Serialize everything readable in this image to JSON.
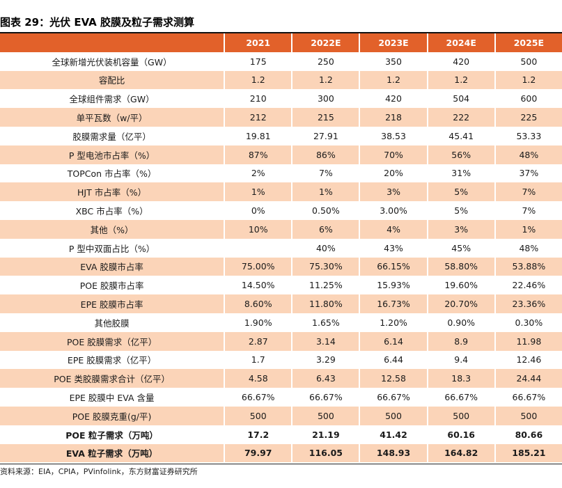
{
  "title": "图表 29：光伏 EVA 胶膜及粒子需求测算",
  "columns": [
    "2021",
    "2022E",
    "2023E",
    "2024E",
    "2025E"
  ],
  "rows": [
    {
      "label": "全球新增光伏装机容量（GW）",
      "values": [
        "175",
        "250",
        "350",
        "420",
        "500"
      ],
      "bold": false
    },
    {
      "label": "容配比",
      "values": [
        "1.2",
        "1.2",
        "1.2",
        "1.2",
        "1.2"
      ],
      "bold": false
    },
    {
      "label": "全球组件需求（GW）",
      "values": [
        "210",
        "300",
        "420",
        "504",
        "600"
      ],
      "bold": false
    },
    {
      "label": "单平瓦数（w/平）",
      "values": [
        "212",
        "215",
        "218",
        "222",
        "225"
      ],
      "bold": false
    },
    {
      "label": "胶膜需求量（亿平）",
      "values": [
        "19.81",
        "27.91",
        "38.53",
        "45.41",
        "53.33"
      ],
      "bold": false
    },
    {
      "label": "P 型电池市占率（%）",
      "values": [
        "87%",
        "86%",
        "70%",
        "56%",
        "48%"
      ],
      "bold": false
    },
    {
      "label": "TOPCon 市占率（%）",
      "values": [
        "2%",
        "7%",
        "20%",
        "31%",
        "37%"
      ],
      "bold": false
    },
    {
      "label": "HJT 市占率（%）",
      "values": [
        "1%",
        "1%",
        "3%",
        "5%",
        "7%"
      ],
      "bold": false
    },
    {
      "label": "XBC 市占率（%）",
      "values": [
        "0%",
        "0.50%",
        "3.00%",
        "5%",
        "7%"
      ],
      "bold": false
    },
    {
      "label": "其他（%）",
      "values": [
        "10%",
        "6%",
        "4%",
        "3%",
        "1%"
      ],
      "bold": false
    },
    {
      "label": "P 型中双面占比（%）",
      "values": [
        "",
        "40%",
        "43%",
        "45%",
        "48%"
      ],
      "bold": false
    },
    {
      "label": "EVA 胶膜市占率",
      "values": [
        "75.00%",
        "75.30%",
        "66.15%",
        "58.80%",
        "53.88%"
      ],
      "bold": false
    },
    {
      "label": "POE 胶膜市占率",
      "values": [
        "14.50%",
        "11.25%",
        "15.93%",
        "19.60%",
        "22.46%"
      ],
      "bold": false
    },
    {
      "label": "EPE 胶膜市占率",
      "values": [
        "8.60%",
        "11.80%",
        "16.73%",
        "20.70%",
        "23.36%"
      ],
      "bold": false
    },
    {
      "label": "其他胶膜",
      "values": [
        "1.90%",
        "1.65%",
        "1.20%",
        "0.90%",
        "0.30%"
      ],
      "bold": false
    },
    {
      "label": "POE 胶膜需求（亿平）",
      "values": [
        "2.87",
        "3.14",
        "6.14",
        "8.9",
        "11.98"
      ],
      "bold": false
    },
    {
      "label": "EPE 胶膜需求（亿平）",
      "values": [
        "1.7",
        "3.29",
        "6.44",
        "9.4",
        "12.46"
      ],
      "bold": false
    },
    {
      "label": "POE 类胶膜需求合计（亿平）",
      "values": [
        "4.58",
        "6.43",
        "12.58",
        "18.3",
        "24.44"
      ],
      "bold": false
    },
    {
      "label": "EPE 胶膜中 EVA 含量",
      "values": [
        "66.67%",
        "66.67%",
        "66.67%",
        "66.67%",
        "66.67%"
      ],
      "bold": false
    },
    {
      "label": "POE 胶膜克重(g/平)",
      "values": [
        "500",
        "500",
        "500",
        "500",
        "500"
      ],
      "bold": false
    },
    {
      "label": "POE 粒子需求（万吨）",
      "values": [
        "17.2",
        "21.19",
        "41.42",
        "60.16",
        "80.66"
      ],
      "bold": true
    },
    {
      "label": "EVA 粒子需求（万吨）",
      "values": [
        "79.97",
        "116.05",
        "148.93",
        "164.82",
        "185.21"
      ],
      "bold": true
    }
  ],
  "source": "资料来源：EIA，CPIA，PVinfolink，东方财富证券研究所",
  "colors": {
    "header": "#e2612a",
    "band": "#fbd4b8"
  }
}
